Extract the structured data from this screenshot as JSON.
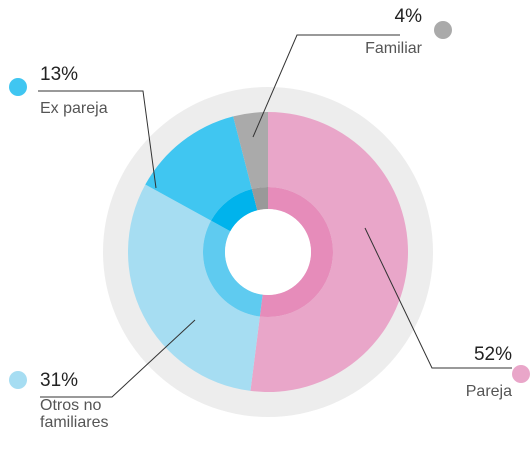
{
  "chart_data": {
    "type": "donut",
    "categories": [
      "Pareja",
      "Otros no familiares",
      "Ex pareja",
      "Familiar"
    ],
    "values": [
      52,
      31,
      13,
      4
    ],
    "value_labels": [
      "52%",
      "31%",
      "13%",
      "4%"
    ],
    "colors": [
      "#e9a6c9",
      "#a6ddf2",
      "#40c6f1",
      "#aaaaaa"
    ],
    "inner_colors": [
      "#e68cba",
      "#5fcbf0",
      "#00b3ec",
      "#999999"
    ]
  }
}
